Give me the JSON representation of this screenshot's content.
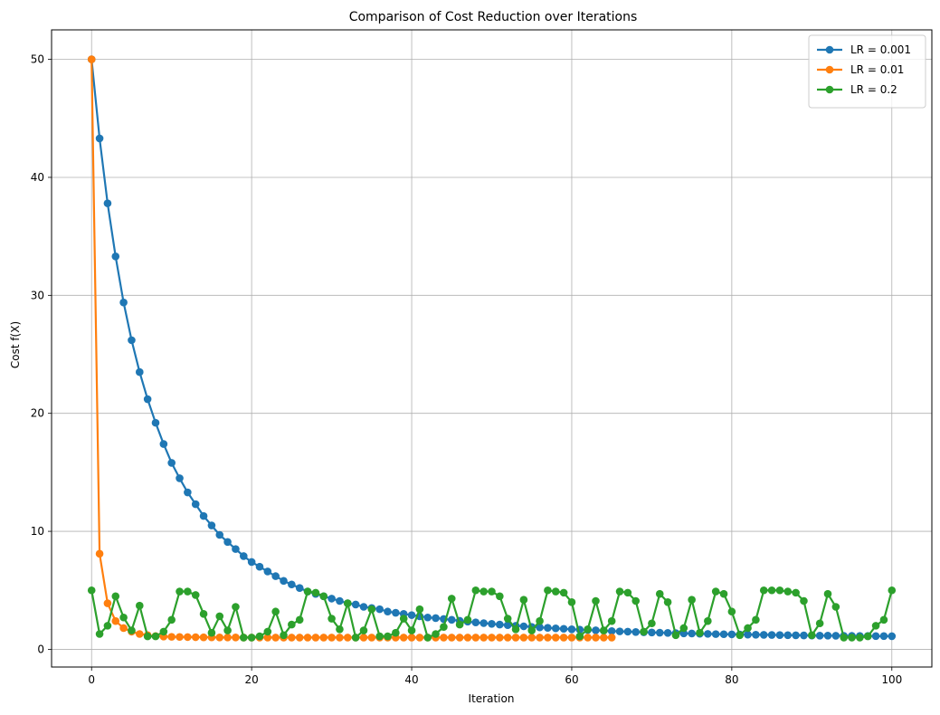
{
  "chart_data": {
    "type": "line",
    "title": "Comparison of Cost Reduction over Iterations",
    "xlabel": "Iteration",
    "ylabel": "Cost f(X)",
    "xlim": [
      -5,
      105
    ],
    "ylim": [
      -1.5,
      52.5
    ],
    "xticks": [
      0,
      20,
      40,
      60,
      80,
      100
    ],
    "yticks": [
      0,
      10,
      20,
      30,
      40,
      50
    ],
    "grid": true,
    "legend_position": "top-right",
    "series": [
      {
        "name": "LR = 0.001",
        "color": "#1f77b4",
        "x_start": 0,
        "values": [
          50.0,
          43.3,
          37.8,
          33.3,
          29.4,
          26.2,
          23.5,
          21.2,
          19.2,
          17.4,
          15.8,
          14.5,
          13.3,
          12.3,
          11.3,
          10.5,
          9.7,
          9.1,
          8.5,
          7.9,
          7.4,
          7.0,
          6.6,
          6.2,
          5.8,
          5.5,
          5.2,
          4.9,
          4.7,
          4.5,
          4.3,
          4.1,
          3.9,
          3.8,
          3.6,
          3.5,
          3.4,
          3.2,
          3.1,
          3.0,
          2.9,
          2.8,
          2.7,
          2.65,
          2.57,
          2.5,
          2.42,
          2.35,
          2.28,
          2.22,
          2.16,
          2.1,
          2.05,
          2.0,
          1.95,
          1.9,
          1.86,
          1.82,
          1.78,
          1.74,
          1.7,
          1.67,
          1.64,
          1.61,
          1.58,
          1.55,
          1.52,
          1.5,
          1.47,
          1.45,
          1.43,
          1.41,
          1.39,
          1.37,
          1.35,
          1.34,
          1.32,
          1.31,
          1.29,
          1.28,
          1.27,
          1.26,
          1.25,
          1.24,
          1.23,
          1.22,
          1.21,
          1.2,
          1.19,
          1.18,
          1.17,
          1.16,
          1.16,
          1.15,
          1.14,
          1.14,
          1.13,
          1.13,
          1.12,
          1.12,
          1.11
        ]
      },
      {
        "name": "LR = 0.01",
        "color": "#ff7f0e",
        "x_start": 0,
        "values": [
          50.0,
          8.1,
          3.9,
          2.4,
          1.8,
          1.5,
          1.3,
          1.2,
          1.12,
          1.08,
          1.06,
          1.05,
          1.04,
          1.03,
          1.02,
          1.02,
          1.01,
          1.01,
          1.01,
          1.0,
          1.0,
          1.0,
          1.0,
          1.0,
          1.0,
          1.0,
          1.0,
          1.0,
          1.0,
          1.0,
          1.0,
          1.0,
          1.0,
          1.0,
          1.0,
          1.0,
          1.0,
          1.0,
          1.0,
          1.0,
          1.0,
          1.0,
          1.0,
          1.0,
          1.0,
          1.0,
          1.0,
          1.0,
          1.0,
          1.0,
          1.0,
          1.0,
          1.0,
          1.0,
          1.0,
          1.0,
          1.0,
          1.0,
          1.0,
          1.0,
          1.0,
          1.0,
          1.0,
          1.0,
          1.0,
          1.0
        ]
      },
      {
        "name": "LR = 0.2",
        "color": "#2ca02c",
        "x_start": 0,
        "values": [
          5.0,
          1.3,
          2.0,
          4.5,
          2.7,
          1.6,
          3.7,
          1.1,
          1.1,
          1.5,
          2.5,
          4.9,
          4.9,
          4.6,
          3.0,
          1.4,
          2.8,
          1.6,
          3.6,
          1.0,
          1.0,
          1.1,
          1.5,
          3.2,
          1.2,
          2.1,
          2.5,
          4.9,
          4.8,
          4.5,
          2.6,
          1.7,
          3.9,
          1.0,
          1.6,
          3.4,
          1.1,
          1.1,
          1.4,
          2.6,
          1.6,
          3.4,
          1.0,
          1.3,
          1.9,
          4.3,
          2.1,
          2.5,
          5.0,
          4.9,
          4.9,
          4.5,
          2.6,
          1.7,
          4.2,
          1.6,
          2.4,
          5.0,
          4.9,
          4.8,
          4.0,
          1.1,
          1.7,
          4.1,
          1.6,
          2.4,
          4.9,
          4.8,
          4.1,
          1.5,
          2.2,
          4.7,
          4.0,
          1.2,
          1.8,
          4.2,
          1.4,
          2.4,
          4.9,
          4.7,
          3.2,
          1.2,
          1.8,
          2.5,
          5.0,
          5.0,
          5.0,
          4.9,
          4.8,
          4.1,
          1.2,
          2.2,
          4.7,
          3.6,
          1.0,
          1.0,
          1.0,
          1.1,
          2.0,
          2.5,
          5.0
        ]
      }
    ]
  }
}
